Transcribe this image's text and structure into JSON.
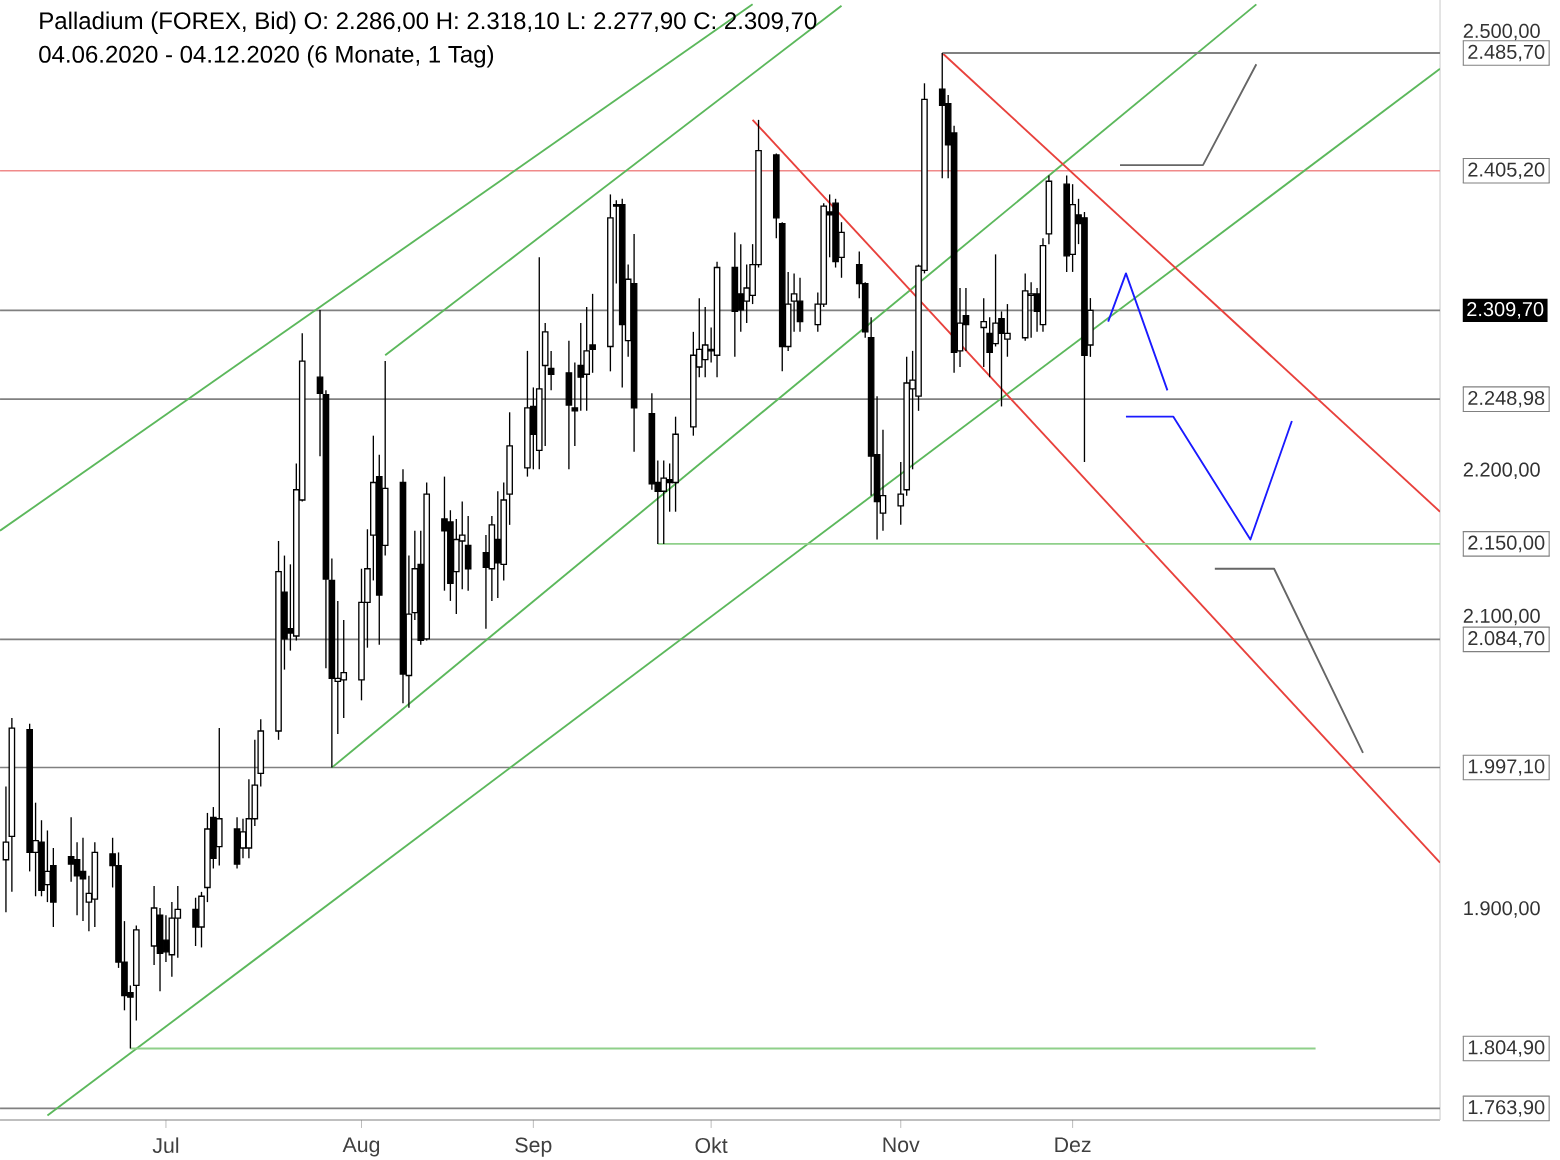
{
  "chart_data": {
    "type": "candlestick",
    "title": "Palladium (FOREX, Bid)  O: 2.286,00  H: 2.318,10  L: 2.277,90  C: 2.309,70",
    "subtitle": "04.06.2020 - 04.12.2020  (6 Monate, 1 Tag)",
    "x": [
      "2020-06-04",
      "2020-06-05",
      "2020-06-08",
      "2020-06-09",
      "2020-06-10",
      "2020-06-11",
      "2020-06-12",
      "2020-06-15",
      "2020-06-16",
      "2020-06-17",
      "2020-06-18",
      "2020-06-19",
      "2020-06-22",
      "2020-06-23",
      "2020-06-24",
      "2020-06-25",
      "2020-06-26",
      "2020-06-29",
      "2020-06-30",
      "2020-07-01",
      "2020-07-02",
      "2020-07-03",
      "2020-07-06",
      "2020-07-07",
      "2020-07-08",
      "2020-07-09",
      "2020-07-10",
      "2020-07-13",
      "2020-07-14",
      "2020-07-15",
      "2020-07-16",
      "2020-07-17",
      "2020-07-20",
      "2020-07-21",
      "2020-07-22",
      "2020-07-23",
      "2020-07-24",
      "2020-07-27",
      "2020-07-28",
      "2020-07-29",
      "2020-07-30",
      "2020-07-31",
      "2020-08-03",
      "2020-08-04",
      "2020-08-05",
      "2020-08-06",
      "2020-08-07",
      "2020-08-10",
      "2020-08-11",
      "2020-08-12",
      "2020-08-13",
      "2020-08-14",
      "2020-08-17",
      "2020-08-18",
      "2020-08-19",
      "2020-08-20",
      "2020-08-21",
      "2020-08-24",
      "2020-08-25",
      "2020-08-26",
      "2020-08-27",
      "2020-08-28",
      "2020-08-31",
      "2020-09-01",
      "2020-09-02",
      "2020-09-03",
      "2020-09-04",
      "2020-09-07",
      "2020-09-08",
      "2020-09-09",
      "2020-09-10",
      "2020-09-11",
      "2020-09-14",
      "2020-09-15",
      "2020-09-16",
      "2020-09-17",
      "2020-09-18",
      "2020-09-21",
      "2020-09-22",
      "2020-09-23",
      "2020-09-24",
      "2020-09-25",
      "2020-09-28",
      "2020-09-29",
      "2020-09-30",
      "2020-10-01",
      "2020-10-02",
      "2020-10-05",
      "2020-10-06",
      "2020-10-07",
      "2020-10-08",
      "2020-10-09",
      "2020-10-12",
      "2020-10-13",
      "2020-10-14",
      "2020-10-15",
      "2020-10-16",
      "2020-10-19",
      "2020-10-20",
      "2020-10-21",
      "2020-10-22",
      "2020-10-23",
      "2020-10-26",
      "2020-10-27",
      "2020-10-28",
      "2020-10-29",
      "2020-10-30",
      "2020-11-02",
      "2020-11-03",
      "2020-11-04",
      "2020-11-05",
      "2020-11-06",
      "2020-11-09",
      "2020-11-10",
      "2020-11-11",
      "2020-11-12",
      "2020-11-13",
      "2020-11-16",
      "2020-11-17",
      "2020-11-18",
      "2020-11-19",
      "2020-11-20",
      "2020-11-23",
      "2020-11-24",
      "2020-11-25",
      "2020-11-26",
      "2020-11-27",
      "2020-11-30",
      "2020-12-01",
      "2020-12-02",
      "2020-12-03",
      "2020-12-04"
    ],
    "ohlc": [
      [
        1934,
        1984,
        1898,
        1946
      ],
      [
        1950,
        2031,
        1912,
        2024
      ],
      [
        2023,
        2027,
        1926,
        1939
      ],
      [
        1939,
        1973,
        1909,
        1947
      ],
      [
        1946,
        1961,
        1909,
        1913
      ],
      [
        1917,
        1954,
        1905,
        1926
      ],
      [
        1930,
        1942,
        1888,
        1905
      ],
      [
        1936,
        1963,
        1919,
        1931
      ],
      [
        1934,
        1946,
        1896,
        1923
      ],
      [
        1926,
        1949,
        1892,
        1921
      ],
      [
        1905,
        1923,
        1885,
        1911
      ],
      [
        1907,
        1946,
        1888,
        1939
      ],
      [
        1938,
        1949,
        1915,
        1930
      ],
      [
        1930,
        1939,
        1860,
        1864
      ],
      [
        1864,
        1892,
        1831,
        1841
      ],
      [
        1843,
        1848,
        1804.9,
        1840
      ],
      [
        1848,
        1889,
        1824,
        1886
      ],
      [
        1875,
        1916,
        1862,
        1901
      ],
      [
        1896,
        1901,
        1844,
        1870
      ],
      [
        1879,
        1896,
        1864,
        1871
      ],
      [
        1869,
        1905,
        1854,
        1894
      ],
      [
        1894,
        1916,
        1867,
        1900
      ],
      [
        1900,
        1908,
        1875,
        1888
      ],
      [
        1888,
        1912,
        1874,
        1909
      ],
      [
        1915,
        1966,
        1905,
        1955
      ],
      [
        1963,
        1970,
        1928,
        1935
      ],
      [
        1943,
        2024,
        1930,
        1962
      ],
      [
        1955,
        1963,
        1928,
        1931
      ],
      [
        1942,
        1962,
        1935,
        1953
      ],
      [
        1942,
        1989,
        1935,
        1962
      ],
      [
        1962,
        2016,
        1957,
        1985
      ],
      [
        1993,
        2030,
        1984,
        2022
      ],
      [
        2022,
        2152,
        2016,
        2131
      ],
      [
        2117,
        2142,
        2064,
        2085
      ],
      [
        2092,
        2136,
        2077,
        2089
      ],
      [
        2087,
        2205,
        2084,
        2187
      ],
      [
        2180,
        2294,
        2179,
        2275
      ],
      [
        2264,
        2310,
        2210,
        2253
      ],
      [
        2252,
        2255,
        2065,
        2126
      ],
      [
        2125,
        2140,
        1997,
        2058
      ],
      [
        2056,
        2111,
        2020,
        2058
      ],
      [
        2057,
        2098,
        2031,
        2062
      ],
      [
        2057,
        2133,
        2043,
        2110
      ],
      [
        2110,
        2160,
        2079,
        2133
      ],
      [
        2156,
        2224,
        2125,
        2192
      ],
      [
        2196,
        2211,
        2081,
        2115
      ],
      [
        2149,
        2275,
        2142,
        2188
      ],
      [
        2192,
        2201,
        2041,
        2061
      ],
      [
        2060,
        2142,
        2038,
        2102
      ],
      [
        2103,
        2159,
        2098,
        2133
      ],
      [
        2136,
        2159,
        2081,
        2084
      ],
      [
        2085,
        2192,
        2084,
        2184
      ],
      [
        2167,
        2196,
        2118,
        2159
      ],
      [
        2165,
        2173,
        2111,
        2123
      ],
      [
        2131,
        2167,
        2102,
        2153
      ],
      [
        2152,
        2179,
        2119,
        2156
      ],
      [
        2149,
        2169,
        2118,
        2133
      ],
      [
        2144,
        2156,
        2092,
        2134
      ],
      [
        2133,
        2169,
        2111,
        2163
      ],
      [
        2153,
        2186,
        2113,
        2137
      ],
      [
        2136,
        2192,
        2125,
        2180
      ],
      [
        2184,
        2240,
        2163,
        2217
      ],
      [
        2202,
        2282,
        2196,
        2243
      ],
      [
        2244,
        2257,
        2201,
        2225
      ],
      [
        2214,
        2346,
        2201,
        2256
      ],
      [
        2272,
        2301,
        2217,
        2295
      ],
      [
        2270,
        2282,
        2255,
        2266
      ],
      [
        2267,
        2289,
        2201,
        2245
      ],
      [
        2243,
        2274,
        2217,
        2241
      ],
      [
        2272,
        2301,
        2241,
        2264
      ],
      [
        2266,
        2312,
        2241,
        2282
      ],
      [
        2286,
        2321,
        2267,
        2283
      ],
      [
        2285,
        2389,
        2268,
        2373
      ],
      [
        2382,
        2385,
        2328,
        2381
      ],
      [
        2382,
        2386,
        2257,
        2300
      ],
      [
        2289,
        2341,
        2278,
        2331
      ],
      [
        2328,
        2362,
        2213,
        2243
      ],
      [
        2239,
        2253,
        2187,
        2191
      ],
      [
        2192,
        2207,
        2150,
        2186
      ],
      [
        2186,
        2207,
        2150,
        2195
      ],
      [
        2194,
        2205,
        2172,
        2192
      ],
      [
        2192,
        2237,
        2172,
        2225
      ],
      [
        2230,
        2295,
        2224,
        2279
      ],
      [
        2271,
        2318,
        2264,
        2283
      ],
      [
        2276,
        2312,
        2264,
        2286
      ],
      [
        2283,
        2298,
        2274,
        2282
      ],
      [
        2279,
        2343,
        2264,
        2339
      ],
      [
        2339,
        2363,
        2278,
        2309
      ],
      [
        2321,
        2355,
        2295,
        2310
      ],
      [
        2316,
        2341,
        2301,
        2325
      ],
      [
        2320,
        2355,
        2314,
        2341
      ],
      [
        2341,
        2440,
        2339,
        2419
      ],
      [
        2416,
        2417,
        2359,
        2373
      ],
      [
        2369,
        2370,
        2268,
        2285
      ],
      [
        2285,
        2336,
        2282,
        2314
      ],
      [
        2316,
        2335,
        2295,
        2321
      ],
      [
        2316,
        2332,
        2295,
        2302
      ],
      [
        2300,
        2322,
        2295,
        2314
      ],
      [
        2314,
        2383,
        2312,
        2381
      ],
      [
        2377,
        2389,
        2346,
        2375
      ],
      [
        2383,
        2386,
        2339,
        2343
      ],
      [
        2346,
        2370,
        2332,
        2363
      ],
      [
        2341,
        2350,
        2318,
        2328
      ],
      [
        2328,
        2329,
        2291,
        2295
      ],
      [
        2291,
        2305,
        2183,
        2210
      ],
      [
        2211,
        2251,
        2153,
        2179
      ],
      [
        2171,
        2228,
        2159,
        2183
      ],
      [
        2176,
        2206,
        2163,
        2184
      ],
      [
        2187,
        2278,
        2183,
        2260
      ],
      [
        2256,
        2282,
        2201,
        2262
      ],
      [
        2251,
        2341,
        2241,
        2340
      ],
      [
        2337,
        2465,
        2335,
        2454
      ],
      [
        2461,
        2485.7,
        2400,
        2450
      ],
      [
        2451,
        2457,
        2400,
        2423
      ],
      [
        2431,
        2436,
        2267,
        2281
      ],
      [
        2282,
        2325,
        2271,
        2301
      ],
      [
        2306,
        2325,
        2282,
        2300
      ],
      [
        2298,
        2318,
        2271,
        2302
      ],
      [
        2294,
        2305,
        2264,
        2281
      ],
      [
        2287,
        2348,
        2285,
        2301
      ],
      [
        2304,
        2309,
        2244,
        2294
      ],
      [
        2290,
        2314,
        2278,
        2294
      ],
      [
        2291,
        2335,
        2289,
        2323
      ],
      [
        2320,
        2329,
        2291,
        2321
      ],
      [
        2321,
        2325,
        2295,
        2309
      ],
      [
        2300,
        2359,
        2295,
        2354
      ],
      [
        2362,
        2402,
        2355,
        2398
      ],
      [
        2396,
        2402,
        2336,
        2347
      ],
      [
        2348,
        2396,
        2336,
        2382
      ],
      [
        2375,
        2386,
        2355,
        2369
      ],
      [
        2373,
        2377,
        2206,
        2279
      ],
      [
        2286,
        2318.1,
        2277.9,
        2309.7
      ]
    ],
    "series": [
      {
        "type": "line",
        "color": "#5cb85c",
        "x": [
          "2020-06-03",
          "2020-10-08"
        ],
        "values": [
          2159,
          2519
        ]
      },
      {
        "type": "line",
        "color": "#5cb85c",
        "x": [
          "2020-06-11",
          "2021-02-01"
        ],
        "values": [
          1759,
          2475
        ]
      },
      {
        "type": "line",
        "color": "#5cb85c",
        "x": [
          "2020-07-29",
          "2021-01-01"
        ],
        "values": [
          1997,
          2519
        ]
      },
      {
        "type": "line",
        "color": "#5cb85c",
        "x": [
          "2020-08-07",
          "2020-10-23"
        ],
        "values": [
          2279,
          2518
        ]
      },
      {
        "type": "line",
        "color": "#e8413c",
        "x": [
          "2020-10-08",
          "2021-02-01"
        ],
        "values": [
          2440,
          1932
        ]
      },
      {
        "type": "line",
        "color": "#e8413c",
        "x": [
          "2020-11-09",
          "2021-02-01"
        ],
        "values": [
          2485.7,
          2172
        ]
      },
      {
        "type": "line",
        "color": "#808080",
        "x": [
          "2020-11-09",
          "2021-02-01"
        ],
        "values": [
          2485.7,
          2485.7
        ]
      },
      {
        "type": "line",
        "color": "#8fd08a",
        "x": [
          "2020-09-22",
          "2021-02-01"
        ],
        "values": [
          2150,
          2150
        ]
      },
      {
        "type": "line",
        "color": "#8fd08a",
        "x": [
          "2020-06-25",
          "2021-01-11"
        ],
        "values": [
          1804.9,
          1804.9
        ]
      },
      {
        "type": "line",
        "color": "#1a1aff",
        "x": [
          "2020-12-07",
          "2020-12-10",
          "2020-12-17"
        ],
        "values": [
          2302,
          2335,
          2255
        ]
      },
      {
        "type": "line",
        "color": "#1a1aff",
        "x": [
          "2020-12-10",
          "2020-12-18",
          "2020-12-31",
          "2021-01-07"
        ],
        "values": [
          2237,
          2237,
          2153,
          2234
        ]
      },
      {
        "type": "line",
        "color": "#666666",
        "x": [
          "2020-12-09",
          "2020-12-23",
          "2021-01-01"
        ],
        "values": [
          2409,
          2409,
          2478
        ]
      },
      {
        "type": "line",
        "color": "#666666",
        "x": [
          "2020-12-25",
          "2021-01-04",
          "2021-01-19"
        ],
        "values": [
          2133,
          2133,
          2007
        ]
      }
    ],
    "ref_lines": [
      {
        "axis": "y",
        "value": 2405.2,
        "color": "#f08a8a"
      },
      {
        "axis": "y",
        "value": 2309.7,
        "color": "#808080"
      },
      {
        "axis": "y",
        "value": 2248.98,
        "color": "#808080"
      },
      {
        "axis": "y",
        "value": 2084.7,
        "color": "#808080"
      },
      {
        "axis": "y",
        "value": 1997.1,
        "color": "#808080"
      },
      {
        "axis": "y",
        "value": 1763.9,
        "color": "#808080"
      }
    ],
    "xlim": [
      "2020-06-03",
      "2021-02-01"
    ],
    "xticks": [
      {
        "value": "2020-07-01",
        "label": "Jul"
      },
      {
        "value": "2020-08-03",
        "label": "Aug"
      },
      {
        "value": "2020-09-01",
        "label": "Sep"
      },
      {
        "value": "2020-10-01",
        "label": "Okt"
      },
      {
        "value": "2020-11-02",
        "label": "Nov"
      },
      {
        "value": "2020-12-01",
        "label": "Dez"
      }
    ],
    "ylim": [
      1756,
      2522
    ],
    "yticks": [
      {
        "value": 2500,
        "label": "2.500,00"
      },
      {
        "value": 2485.7,
        "label": "2.485,70"
      },
      {
        "value": 2405.2,
        "label": "2.405,20"
      },
      {
        "value": 2309.7,
        "label": "2.309,70"
      },
      {
        "value": 2248.98,
        "label": "2.248,98"
      },
      {
        "value": 2200,
        "label": "2.200,00"
      },
      {
        "value": 2150,
        "label": "2.150,00"
      },
      {
        "value": 2100,
        "label": "2.100,00"
      },
      {
        "value": 2084.7,
        "label": "2.084,70"
      },
      {
        "value": 1997.1,
        "label": "1.997,10"
      },
      {
        "value": 1900,
        "label": "1.900,00"
      },
      {
        "value": 1804.9,
        "label": "1.804,90"
      },
      {
        "value": 1763.9,
        "label": "1.763,90"
      }
    ]
  }
}
